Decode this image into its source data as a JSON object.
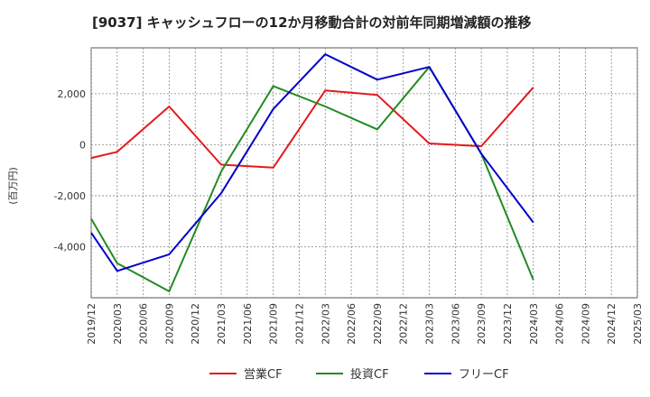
{
  "chart_data": {
    "type": "line",
    "title": "[9037]  キャッシュフローの12か月移動合計の対前年同期増減額の推移",
    "ylabel": "(百万円)",
    "xlabel": "",
    "ylim": [
      -6000,
      3800
    ],
    "yticks": [
      2000,
      0,
      -2000,
      -4000
    ],
    "ytick_labels": [
      "2,000",
      "0",
      "-2,000",
      "-4,000"
    ],
    "x_labels": [
      "2019/12",
      "2020/03",
      "2020/06",
      "2020/09",
      "2020/12",
      "2021/03",
      "2021/06",
      "2021/09",
      "2021/12",
      "2022/03",
      "2022/06",
      "2022/09",
      "2022/12",
      "2023/03",
      "2023/06",
      "2023/09",
      "2023/12",
      "2024/03",
      "2024/06",
      "2024/09",
      "2024/12",
      "2025/03"
    ],
    "grid": true,
    "legend_position": "bottom",
    "series": [
      {
        "name": "営業CF",
        "color": "#e31a1c",
        "points": [
          [
            0,
            -520
          ],
          [
            1,
            -280
          ],
          [
            3,
            1500
          ],
          [
            5,
            -780
          ],
          [
            7,
            -900
          ],
          [
            9,
            2130
          ],
          [
            11,
            1950
          ],
          [
            13,
            50
          ],
          [
            15,
            -60
          ],
          [
            17,
            2250
          ]
        ]
      },
      {
        "name": "投資CF",
        "color": "#228b22",
        "points": [
          [
            0,
            -2900
          ],
          [
            1,
            -4650
          ],
          [
            3,
            -5750
          ],
          [
            5,
            -1050
          ],
          [
            7,
            2300
          ],
          [
            9,
            1500
          ],
          [
            11,
            600
          ],
          [
            13,
            3050
          ],
          [
            15,
            -350
          ],
          [
            17,
            -5300
          ]
        ]
      },
      {
        "name": "フリーCF",
        "color": "#0000cc",
        "points": [
          [
            0,
            -3450
          ],
          [
            1,
            -4950
          ],
          [
            3,
            -4300
          ],
          [
            5,
            -1900
          ],
          [
            7,
            1400
          ],
          [
            9,
            3550
          ],
          [
            11,
            2550
          ],
          [
            13,
            3050
          ],
          [
            15,
            -350
          ],
          [
            17,
            -3050
          ]
        ]
      }
    ]
  }
}
